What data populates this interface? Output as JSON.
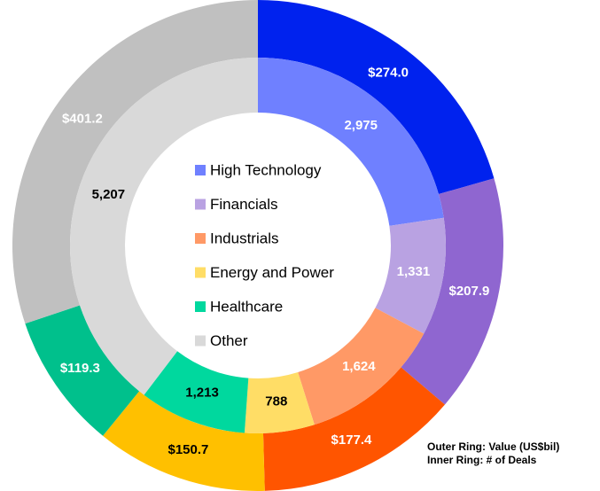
{
  "chart_data": {
    "type": "nested-donut",
    "categories": [
      "High Technology",
      "Financials",
      "Industrials",
      "Energy and Power",
      "Healthcare",
      "Other"
    ],
    "series": [
      {
        "ring": "outer",
        "values": [
          274.0,
          207.9,
          177.4,
          150.7,
          119.3,
          401.2
        ],
        "value_labels": [
          "$274.0",
          "$207.9",
          "$177.4",
          "$150.7",
          "$119.3",
          "$401.2"
        ],
        "colors": [
          "#0022ee",
          "#8f66d0",
          "#ff5500",
          "#ffc000",
          "#00c08c",
          "#c0c0c0"
        ],
        "label_colors": [
          "#ffffff",
          "#ffffff",
          "#ffffff",
          "#000000",
          "#ffffff",
          "#ffffff"
        ]
      },
      {
        "ring": "inner",
        "values": [
          2975,
          1331,
          1624,
          788,
          1213,
          5207
        ],
        "value_labels": [
          "2,975",
          "1,331",
          "1,624",
          "788",
          "1,213",
          "5,207"
        ],
        "colors": [
          "#6f80ff",
          "#b9a2e2",
          "#ff9966",
          "#ffdd66",
          "#00d89e",
          "#d9d9d9"
        ],
        "label_colors": [
          "#ffffff",
          "#ffffff",
          "#ffffff",
          "#000000",
          "#000000",
          "#000000"
        ]
      }
    ],
    "annotations": [
      "Outer Ring: Value (US$bil)",
      "Inner Ring: # of Deals"
    ]
  }
}
